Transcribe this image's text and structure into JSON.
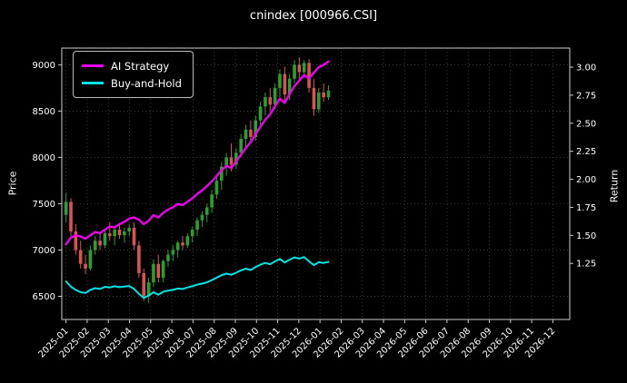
{
  "title": "cnindex [000966.CSI]",
  "axes": {
    "left_label": "Price",
    "right_label": "Return"
  },
  "legend": {
    "items": [
      {
        "label": "AI Strategy",
        "color": "#ee00ee"
      },
      {
        "label": "Buy-and-Hold",
        "color": "#00e5e5"
      }
    ]
  },
  "chart_data": {
    "type": "candlestick+line",
    "title": "cnindex [000966.CSI]",
    "background": "#000000",
    "text_color": "#ffffff",
    "spine_color": "#cccccc",
    "tick_color": "#cccccc",
    "grid_color": "#4d4d4d",
    "grid": true,
    "legend_position": "upper left",
    "points_span_months": 12.4,
    "x_axis": {
      "range_months": [
        -0.2,
        23.8
      ],
      "tick_labels": [
        "2025-01",
        "2025-02",
        "2025-03",
        "2025-04",
        "2025-05",
        "2025-06",
        "2025-07",
        "2025-08",
        "2025-09",
        "2025-10",
        "2025-11",
        "2025-12",
        "2026-01",
        "2026-02",
        "2026-03",
        "2026-04",
        "2026-05",
        "2026-06",
        "2026-07",
        "2026-08",
        "2026-09",
        "2026-10",
        "2026-11",
        "2026-12"
      ]
    },
    "price_axis": {
      "label": "Price",
      "ticks": [
        6500,
        7000,
        7500,
        8000,
        8500,
        9000
      ],
      "range": [
        6250,
        9180
      ]
    },
    "return_axis": {
      "label": "Return",
      "ticks": [
        1.25,
        1.5,
        1.75,
        2.0,
        2.25,
        2.5,
        2.75,
        3.0
      ],
      "range": [
        0.75,
        3.17
      ]
    },
    "series": [
      {
        "name": "AI Strategy",
        "axis": "return",
        "color": "#ee00ee",
        "width": 2.4,
        "values": [
          1.42,
          1.48,
          1.5,
          1.49,
          1.47,
          1.5,
          1.53,
          1.52,
          1.55,
          1.58,
          1.57,
          1.6,
          1.62,
          1.65,
          1.66,
          1.64,
          1.6,
          1.63,
          1.68,
          1.66,
          1.7,
          1.73,
          1.75,
          1.78,
          1.77,
          1.8,
          1.83,
          1.87,
          1.9,
          1.94,
          1.98,
          2.03,
          2.08,
          2.12,
          2.1,
          2.16,
          2.22,
          2.28,
          2.33,
          2.4,
          2.47,
          2.53,
          2.58,
          2.65,
          2.72,
          2.68,
          2.76,
          2.83,
          2.88,
          2.93,
          2.9,
          2.95,
          3.0,
          3.02,
          3.05
        ]
      },
      {
        "name": "Buy-and-Hold",
        "axis": "return",
        "color": "#00e5e5",
        "width": 2.0,
        "values": [
          1.09,
          1.043,
          1.014,
          0.993,
          0.986,
          1.014,
          1.029,
          1.022,
          1.041,
          1.036,
          1.046,
          1.038,
          1.043,
          1.049,
          1.022,
          0.978,
          0.942,
          0.964,
          0.993,
          0.971,
          0.997,
          1.007,
          1.014,
          1.026,
          1.022,
          1.036,
          1.046,
          1.061,
          1.07,
          1.081,
          1.101,
          1.123,
          1.145,
          1.159,
          1.148,
          1.167,
          1.188,
          1.203,
          1.191,
          1.217,
          1.239,
          1.254,
          1.242,
          1.268,
          1.29,
          1.258,
          1.283,
          1.304,
          1.293,
          1.307,
          1.268,
          1.235,
          1.261,
          1.254,
          1.264
        ]
      },
      {
        "name": "Price OHLC",
        "axis": "price",
        "type": "candlestick",
        "up_color": "#2ca02c",
        "down_color": "#d9544d",
        "ohlc": [
          [
            7380,
            7620,
            7300,
            7520
          ],
          [
            7520,
            7560,
            7150,
            7200
          ],
          [
            7200,
            7280,
            6950,
            7000
          ],
          [
            7000,
            7100,
            6800,
            6850
          ],
          [
            6850,
            6950,
            6740,
            6800
          ],
          [
            6800,
            7050,
            6780,
            7000
          ],
          [
            7000,
            7150,
            6950,
            7100
          ],
          [
            7100,
            7180,
            7000,
            7050
          ],
          [
            7050,
            7220,
            7020,
            7180
          ],
          [
            7180,
            7300,
            7100,
            7150
          ],
          [
            7150,
            7250,
            7050,
            7220
          ],
          [
            7220,
            7280,
            7120,
            7160
          ],
          [
            7160,
            7240,
            7080,
            7200
          ],
          [
            7200,
            7280,
            7150,
            7240
          ],
          [
            7240,
            7300,
            7000,
            7050
          ],
          [
            7050,
            7100,
            6700,
            6750
          ],
          [
            6750,
            6800,
            6450,
            6500
          ],
          [
            6500,
            6700,
            6430,
            6650
          ],
          [
            6650,
            6900,
            6600,
            6850
          ],
          [
            6850,
            6950,
            6650,
            6700
          ],
          [
            6700,
            6900,
            6650,
            6880
          ],
          [
            6880,
            7000,
            6820,
            6950
          ],
          [
            6950,
            7050,
            6880,
            7000
          ],
          [
            7000,
            7100,
            6920,
            7080
          ],
          [
            7080,
            7150,
            7000,
            7050
          ],
          [
            7050,
            7180,
            7020,
            7150
          ],
          [
            7150,
            7250,
            7080,
            7220
          ],
          [
            7220,
            7350,
            7150,
            7320
          ],
          [
            7320,
            7420,
            7250,
            7380
          ],
          [
            7380,
            7500,
            7300,
            7460
          ],
          [
            7460,
            7650,
            7400,
            7600
          ],
          [
            7600,
            7800,
            7550,
            7750
          ],
          [
            7750,
            7950,
            7650,
            7900
          ],
          [
            7900,
            8050,
            7800,
            8000
          ],
          [
            8000,
            8150,
            7850,
            7920
          ],
          [
            7920,
            8100,
            7880,
            8050
          ],
          [
            8050,
            8250,
            8000,
            8200
          ],
          [
            8200,
            8350,
            8100,
            8300
          ],
          [
            8300,
            8400,
            8150,
            8220
          ],
          [
            8220,
            8450,
            8180,
            8400
          ],
          [
            8400,
            8600,
            8350,
            8550
          ],
          [
            8550,
            8700,
            8450,
            8650
          ],
          [
            8650,
            8750,
            8500,
            8570
          ],
          [
            8570,
            8800,
            8520,
            8750
          ],
          [
            8750,
            8950,
            8650,
            8900
          ],
          [
            8900,
            8980,
            8600,
            8680
          ],
          [
            8680,
            8900,
            8620,
            8850
          ],
          [
            8850,
            9050,
            8800,
            9000
          ],
          [
            9000,
            9080,
            8850,
            8920
          ],
          [
            8920,
            9050,
            8880,
            9020
          ],
          [
            9020,
            9060,
            8700,
            8750
          ],
          [
            8750,
            8850,
            8450,
            8520
          ],
          [
            8520,
            8750,
            8480,
            8700
          ],
          [
            8700,
            8800,
            8600,
            8650
          ],
          [
            8650,
            8780,
            8620,
            8720
          ]
        ]
      }
    ]
  }
}
